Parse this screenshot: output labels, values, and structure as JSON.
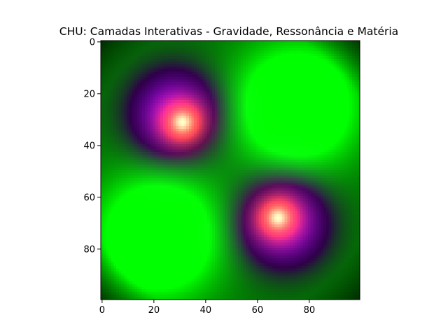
{
  "chart_data": {
    "type": "heatmap",
    "title": "CHU: Camadas Interativas - Gravidade, Ressonância e Matéria",
    "xlabel": "",
    "ylabel": "",
    "grid": false,
    "x_range": [
      0,
      99
    ],
    "y_range": [
      0,
      99
    ],
    "y_inverted": true,
    "image_size": [
      100,
      100
    ],
    "x_ticks": [
      0,
      20,
      40,
      60,
      80
    ],
    "y_ticks": [
      0,
      20,
      40,
      60,
      80
    ],
    "x_tick_labels": [
      "0",
      "20",
      "40",
      "60",
      "80"
    ],
    "y_tick_labels": [
      "0",
      "20",
      "40",
      "60",
      "80"
    ],
    "layers": {
      "gravity_wells": [
        {
          "x": 28,
          "y": 28,
          "color": "#a040ff"
        },
        {
          "x": 70,
          "y": 70,
          "color": "#a040ff"
        }
      ],
      "matter_cores": [
        {
          "x": 31,
          "y": 31,
          "color": "#ff9aaa"
        },
        {
          "x": 68,
          "y": 68,
          "color": "#ff9aaa"
        }
      ],
      "resonance_peaks": [
        {
          "x": 75,
          "y": 25,
          "color": "#00ff00"
        },
        {
          "x": 22,
          "y": 75,
          "color": "#00ff00"
        }
      ]
    },
    "colors": {
      "gravity": "#8a2be2",
      "resonance": "#00ff00",
      "matter": "#ff8c1a",
      "matter_core": "#ffa0a8",
      "background": "#000000"
    }
  }
}
